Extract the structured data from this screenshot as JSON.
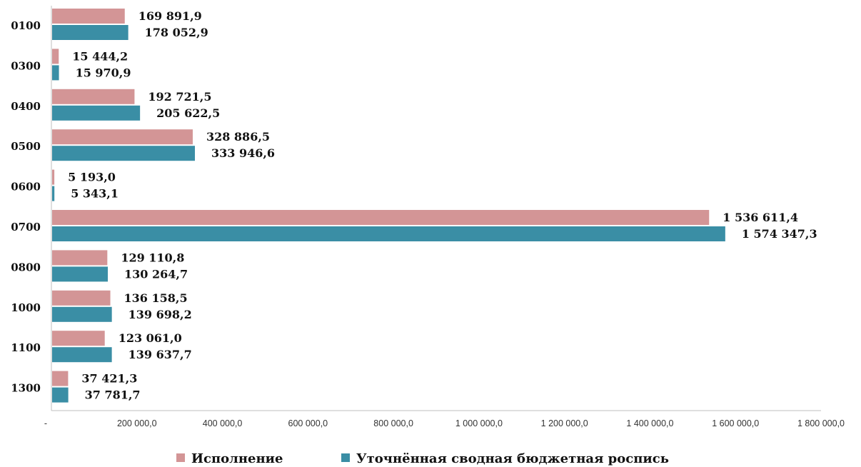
{
  "chart_data": {
    "type": "bar",
    "orientation": "horizontal",
    "categories": [
      "0100",
      "0300",
      "0400",
      "0500",
      "0600",
      "0700",
      "0800",
      "1000",
      "1100",
      "1300"
    ],
    "series": [
      {
        "name": "Исполнение",
        "color": "#d39596",
        "values": [
          169891.9,
          15444.2,
          192721.5,
          328886.5,
          5193.0,
          1536611.4,
          129110.8,
          136158.5,
          123061.0,
          37421.3
        ],
        "labels": [
          "169 891,9",
          "15 444,2",
          "192 721,5",
          "328 886,5",
          "5 193,0",
          "1 536 611,4",
          "129 110,8",
          "136 158,5",
          "123 061,0",
          "37 421,3"
        ]
      },
      {
        "name": "Уточнённая сводная бюджетная роспись",
        "color": "#3a8ea5",
        "values": [
          178052.9,
          15970.9,
          205622.5,
          333946.6,
          5343.1,
          1574347.3,
          130264.7,
          139698.2,
          139637.7,
          37781.7
        ],
        "labels": [
          "178 052,9",
          "15 970,9",
          "205 622,5",
          "333 946,6",
          "5 343,1",
          "1 574 347,3",
          "130 264,7",
          "139 698,2",
          "139 637,7",
          "37 781,7"
        ]
      }
    ],
    "xlim": [
      0,
      1800000
    ],
    "x_ticks": [
      0,
      200000,
      400000,
      600000,
      800000,
      1000000,
      1200000,
      1400000,
      1600000,
      1800000
    ],
    "x_tick_labels": [
      "-",
      "200 000,0",
      "400 000,0",
      "600 000,0",
      "800 000,0",
      "1 000 000,0",
      "1 200 000,0",
      "1 400 000,0",
      "1 600 000,0",
      "1 800 000,0"
    ],
    "grid": false,
    "legend_position": "bottom"
  }
}
